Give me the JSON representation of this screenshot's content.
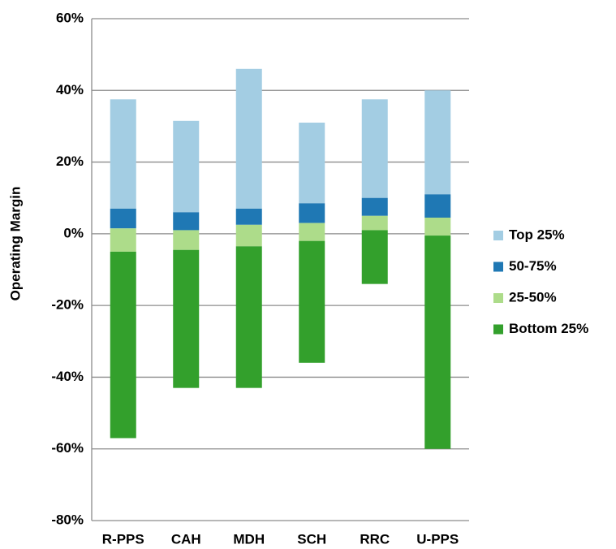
{
  "chart_data": {
    "type": "bar",
    "y_label": "Operating Margin",
    "categories": [
      "R-PPS",
      "CAH",
      "MDH",
      "SCH",
      "RRC",
      "U-PPS"
    ],
    "series": [
      {
        "name": "Top 25%",
        "color": "#a3cde3",
        "values": [
          [
            7,
            37.5
          ],
          [
            6,
            31.5
          ],
          [
            7,
            46
          ],
          [
            8.5,
            31
          ],
          [
            10,
            37.5
          ],
          [
            11,
            40
          ]
        ]
      },
      {
        "name": "50-75%",
        "color": "#1f78b4",
        "values": [
          [
            1.5,
            7
          ],
          [
            1,
            6
          ],
          [
            2.5,
            7
          ],
          [
            3,
            8.5
          ],
          [
            5,
            10
          ],
          [
            4.5,
            11
          ]
        ]
      },
      {
        "name": "25-50%",
        "color": "#addc8a",
        "values": [
          [
            -5,
            1.5
          ],
          [
            -4.5,
            1
          ],
          [
            -3.5,
            2.5
          ],
          [
            -2,
            3
          ],
          [
            1,
            5
          ],
          [
            -0.5,
            4.5
          ]
        ]
      },
      {
        "name": "Bottom 25%",
        "color": "#33a02c",
        "values": [
          [
            -57,
            -5
          ],
          [
            -43,
            -4.5
          ],
          [
            -43,
            -3.5
          ],
          [
            -36,
            -2
          ],
          [
            -14,
            1
          ],
          [
            -60,
            -0.5
          ]
        ]
      }
    ],
    "ylim": [
      -80,
      60
    ],
    "yticks": [
      {
        "value": -80,
        "label": "-80%"
      },
      {
        "value": -60,
        "label": "-60%"
      },
      {
        "value": -40,
        "label": "-40%"
      },
      {
        "value": -20,
        "label": "-20%"
      },
      {
        "value": 0,
        "label": "0%"
      },
      {
        "value": 20,
        "label": "20%"
      },
      {
        "value": 40,
        "label": "40%"
      },
      {
        "value": 60,
        "label": "60%"
      }
    ],
    "grid": true,
    "legend": "right"
  }
}
